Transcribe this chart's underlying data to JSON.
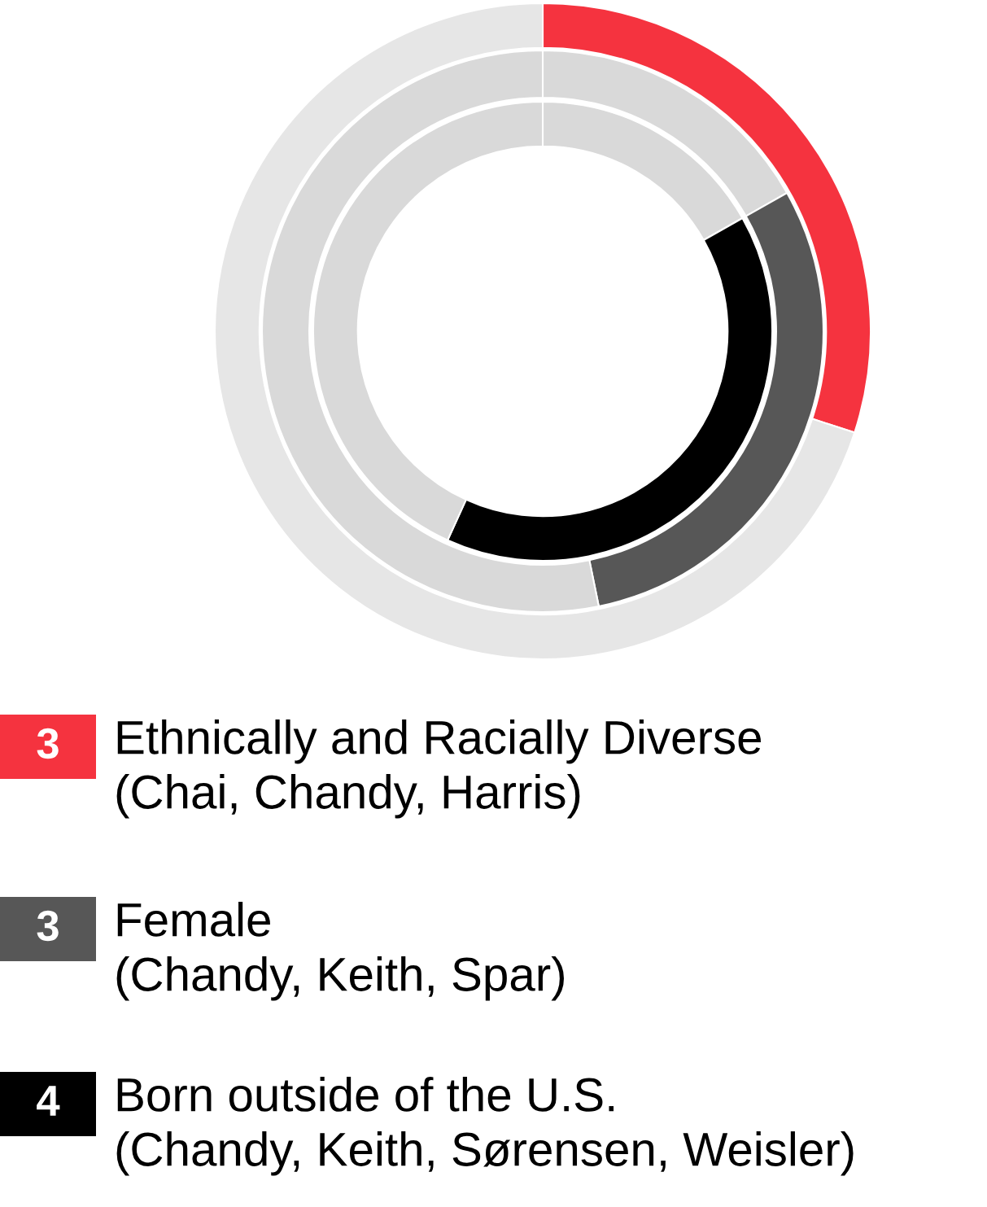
{
  "chart_data": {
    "type": "donut",
    "legend": "bottom",
    "series": [
      {
        "name": "Ethnically and Racially Diverse\n(Chai, Chandy, Harris)",
        "values": [
          30,
          70
        ],
        "colors": [
          "#f5333f",
          "#e6e6e6"
        ]
      },
      {
        "name": "Female\n(Chandy, Keith, Spar)",
        "values": [
          16.8,
          30,
          53.2
        ],
        "colors": [
          "#d9d9d9",
          "#575757",
          "#d9d9d9"
        ]
      },
      {
        "name": "Born outside of the U.S.\n(Chandy, Keith, Sørensen, Weisler)",
        "values": [
          16.8,
          40,
          43.2
        ],
        "colors": [
          "#d9d9d9",
          "#000000",
          "#d9d9d9"
        ]
      }
    ],
    "annotations": [
      "3",
      "3",
      "4"
    ]
  }
}
